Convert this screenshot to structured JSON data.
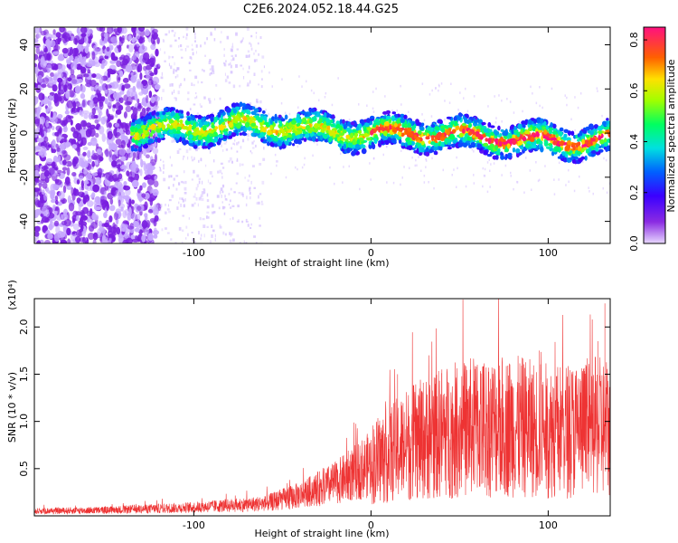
{
  "title": "C2E6.2024.052.18.44.G25",
  "chart_data": [
    {
      "type": "heatmap",
      "xlabel": "Height of straight line (km)",
      "ylabel": "Frequency (Hz)",
      "xlim": [
        -190,
        135
      ],
      "ylim": [
        -50,
        48
      ],
      "x_ticks": [
        -100,
        0,
        100
      ],
      "y_ticks": [
        -40,
        -20,
        0,
        20,
        40
      ],
      "colorbar": {
        "label": "Normalized spectral amplitude",
        "range": [
          0.0,
          0.85
        ],
        "ticks": [
          0.0,
          0.2,
          0.4,
          0.6,
          0.8
        ]
      },
      "ridge": {
        "x": [
          -130,
          -110,
          -90,
          -70,
          -50,
          -30,
          -10,
          10,
          30,
          50,
          70,
          90,
          110,
          130
        ],
        "y": [
          1,
          2,
          3,
          4,
          3,
          1,
          0,
          0,
          0,
          -1,
          -2,
          -3,
          -4,
          -3
        ]
      },
      "grid": false
    },
    {
      "type": "line",
      "xlabel": "Height of straight line (km)",
      "ylabel": "SNR (10 * v/v)",
      "y_multiplier": "(x10⁴)",
      "xlim": [
        -190,
        135
      ],
      "ylim": [
        0,
        2.3
      ],
      "x_ticks": [
        -100,
        0,
        100
      ],
      "y_ticks": [
        0.5,
        1.0,
        1.5,
        2.0
      ],
      "y_tick_labels": [
        "0.5",
        "1.0",
        "1.5",
        "2.0"
      ],
      "color": "#ee3333",
      "series_envelope": {
        "x": [
          -190,
          -150,
          -100,
          -60,
          -40,
          -20,
          0,
          20,
          40,
          60,
          80,
          100,
          120,
          133
        ],
        "y": [
          0.05,
          0.06,
          0.09,
          0.13,
          0.22,
          0.35,
          0.55,
          0.75,
          0.88,
          0.95,
          0.95,
          0.9,
          0.92,
          0.95
        ]
      },
      "peak_values": {
        "x": [
          15,
          40,
          60,
          95,
          128,
          132
        ],
        "y": [
          1.5,
          1.55,
          1.6,
          1.75,
          1.85,
          2.25
        ]
      },
      "grid": false
    }
  ]
}
